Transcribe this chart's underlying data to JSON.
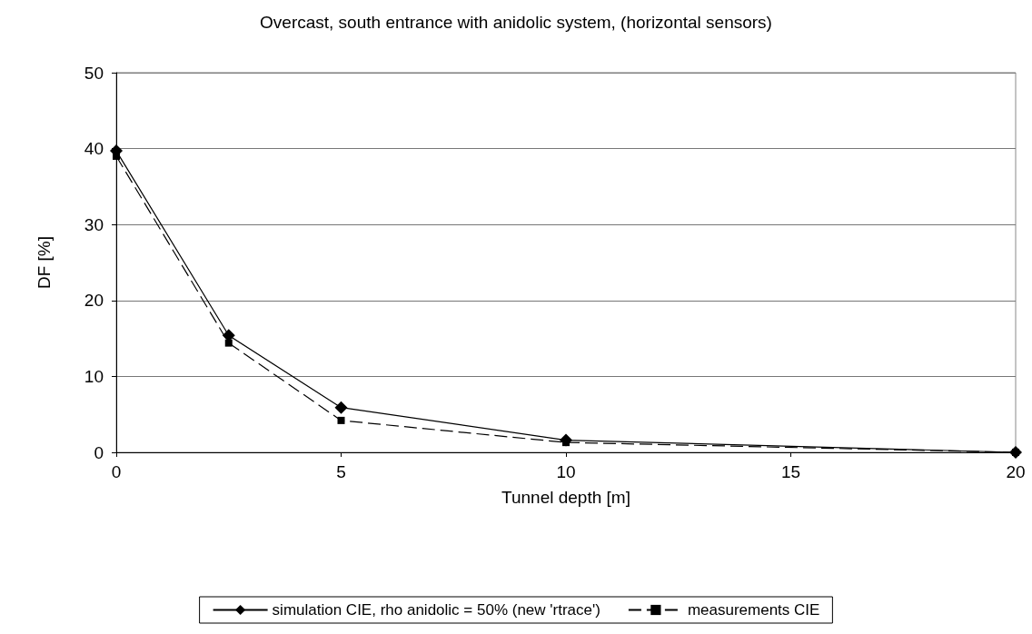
{
  "chart_data": {
    "type": "line",
    "title": "Overcast, south entrance with anidolic system, (horizontal sensors)",
    "xlabel": "Tunnel depth [m]",
    "ylabel": "DF [%]",
    "x": [
      0,
      2.5,
      5,
      10,
      20
    ],
    "series": [
      {
        "name": "simulation CIE, rho anidolic = 50% (new 'rtrace')",
        "color": "#000000",
        "values": [
          39.7,
          15.4,
          5.9,
          1.6,
          0
        ],
        "marker": "diamond",
        "line_style": "solid"
      },
      {
        "name": "measurements CIE",
        "color": "#000000",
        "values": [
          39.0,
          14.4,
          4.2,
          1.3,
          0
        ],
        "marker": "square",
        "line_style": "dashed"
      }
    ],
    "xlim": [
      0,
      20
    ],
    "xticks": [
      0,
      5,
      10,
      15,
      20
    ],
    "ylim": [
      0,
      50
    ],
    "yticks": [
      0,
      10,
      20,
      30,
      40,
      50
    ],
    "grid": "y",
    "legend": "bottom"
  }
}
